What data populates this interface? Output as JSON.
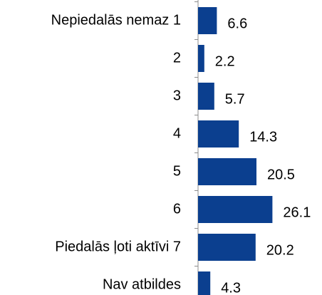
{
  "chart_data": {
    "type": "bar",
    "orientation": "horizontal",
    "categories": [
      "Nepiedalās nemaz 1",
      "2",
      "3",
      "4",
      "5",
      "6",
      "Piedalās ļoti aktīvi 7",
      "Nav atbildes"
    ],
    "values": [
      6.6,
      2.2,
      5.7,
      14.3,
      20.5,
      26.1,
      20.2,
      4.3
    ],
    "color": "#0b3f8f",
    "xlim": [
      0,
      30
    ]
  }
}
